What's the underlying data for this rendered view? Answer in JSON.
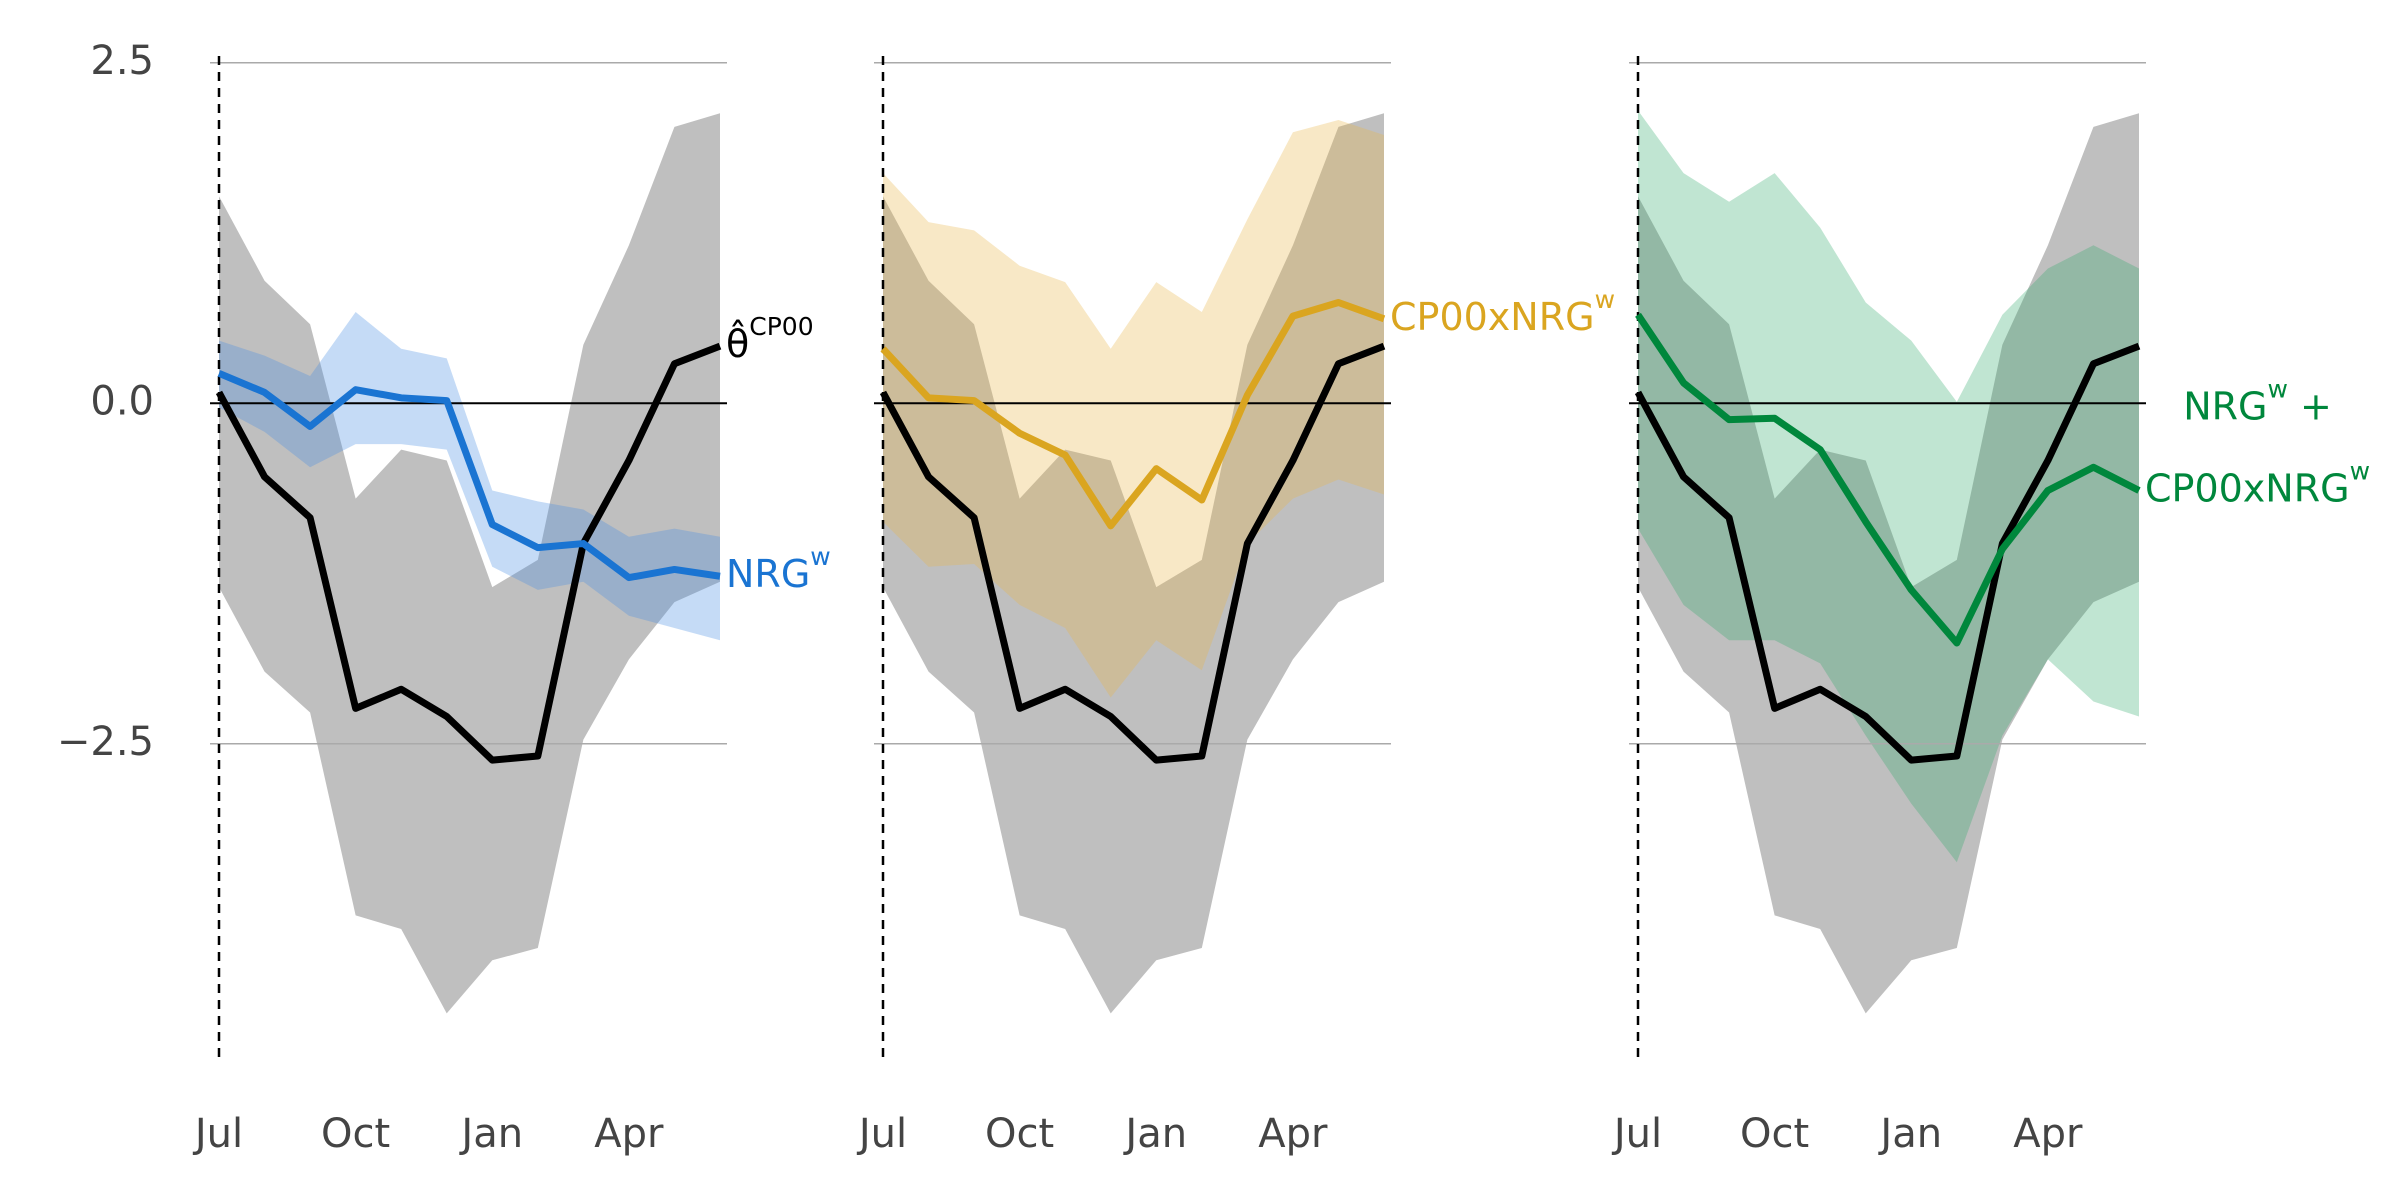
{
  "chart_data": [
    {
      "type": "line",
      "categories": [
        "Jul",
        null,
        null,
        "Oct",
        null,
        null,
        "Jan",
        null,
        null,
        "Apr",
        null,
        null
      ],
      "ylim": [
        -4.8,
        2.55
      ],
      "yticks": [
        2.5,
        {
          "value": 0,
          "label": "0.0"
        },
        {
          "value": -2.5,
          "label": "−2.5"
        }
      ],
      "yticklabels": true,
      "grid": true,
      "series": [
        {
          "label": [
            [
              "θ̂",
              "CP00"
            ]
          ],
          "color": "#000000",
          "band_color": "#bfbfbf",
          "band_opacity": 1,
          "values": [
            0.08,
            -0.54,
            -0.84,
            -2.24,
            -2.1,
            -2.3,
            -2.62,
            -2.59,
            -1.03,
            -0.42,
            0.29,
            0.42
          ],
          "upper": [
            1.52,
            0.9,
            0.58,
            -0.7,
            -0.34,
            -0.42,
            -1.35,
            -1.15,
            0.43,
            1.16,
            2.03,
            2.13
          ],
          "lower": [
            -1.35,
            -1.97,
            -2.27,
            -3.76,
            -3.86,
            -4.48,
            -4.09,
            -4.0,
            -2.47,
            -1.88,
            -1.46,
            -1.31
          ]
        },
        {
          "label": [
            [
              "NRG",
              "w"
            ]
          ],
          "color": "#1a74d2",
          "band_color": "#4a90e2",
          "band_opacity": 0.32,
          "values": [
            0.22,
            0.08,
            -0.17,
            0.1,
            0.04,
            0.02,
            -0.89,
            -1.06,
            -1.03,
            -1.28,
            -1.22,
            -1.27
          ],
          "upper": [
            0.46,
            0.35,
            0.2,
            0.67,
            0.4,
            0.33,
            -0.64,
            -0.72,
            -0.78,
            -0.98,
            -0.92,
            -0.98
          ],
          "lower": [
            -0.03,
            -0.21,
            -0.47,
            -0.3,
            -0.3,
            -0.34,
            -1.2,
            -1.37,
            -1.31,
            -1.56,
            -1.65,
            -1.74
          ]
        }
      ]
    },
    {
      "type": "line",
      "categories": [
        "Jul",
        null,
        null,
        "Oct",
        null,
        null,
        "Jan",
        null,
        null,
        "Apr",
        null,
        null
      ],
      "ylim": [
        -4.8,
        2.55
      ],
      "yticks": [
        2.5,
        0,
        -2.5
      ],
      "yticklabels": false,
      "grid": true,
      "series": [
        {
          "color": "#000000",
          "band_color": "#bfbfbf",
          "band_opacity": 1,
          "values": [
            0.08,
            -0.54,
            -0.84,
            -2.24,
            -2.1,
            -2.3,
            -2.62,
            -2.59,
            -1.03,
            -0.42,
            0.29,
            0.42
          ],
          "upper": [
            1.52,
            0.9,
            0.58,
            -0.7,
            -0.34,
            -0.42,
            -1.35,
            -1.15,
            0.43,
            1.16,
            2.03,
            2.13
          ],
          "lower": [
            -1.35,
            -1.97,
            -2.27,
            -3.76,
            -3.86,
            -4.48,
            -4.09,
            -4.0,
            -2.47,
            -1.88,
            -1.46,
            -1.31
          ]
        },
        {
          "label": [
            [
              "CP00xNRG",
              "w"
            ]
          ],
          "color": "#daa520",
          "band_color": "#e8b84f",
          "band_opacity": 0.32,
          "values": [
            0.4,
            0.04,
            0.02,
            -0.22,
            -0.38,
            -0.9,
            -0.48,
            -0.71,
            0.06,
            0.64,
            0.74,
            0.62
          ],
          "upper": [
            1.69,
            1.33,
            1.27,
            1.01,
            0.89,
            0.4,
            0.89,
            0.67,
            1.35,
            1.99,
            2.08,
            1.97
          ],
          "lower": [
            -0.87,
            -1.2,
            -1.18,
            -1.48,
            -1.65,
            -2.16,
            -1.74,
            -1.96,
            -1.03,
            -0.7,
            -0.56,
            -0.67
          ]
        }
      ]
    },
    {
      "type": "line",
      "categories": [
        "Jul",
        null,
        null,
        "Oct",
        null,
        null,
        "Jan",
        null,
        null,
        "Apr",
        null,
        null
      ],
      "ylim": [
        -4.8,
        2.55
      ],
      "yticks": [
        2.5,
        0,
        -2.5
      ],
      "yticklabels": false,
      "grid": true,
      "series": [
        {
          "color": "#000000",
          "band_color": "#bfbfbf",
          "band_opacity": 1,
          "values": [
            0.08,
            -0.54,
            -0.84,
            -2.24,
            -2.1,
            -2.3,
            -2.62,
            -2.59,
            -1.03,
            -0.42,
            0.29,
            0.42
          ],
          "upper": [
            1.52,
            0.9,
            0.58,
            -0.7,
            -0.34,
            -0.42,
            -1.35,
            -1.15,
            0.43,
            1.16,
            2.03,
            2.13
          ],
          "lower": [
            -1.35,
            -1.97,
            -2.27,
            -3.76,
            -3.86,
            -4.48,
            -4.09,
            -4.0,
            -2.47,
            -1.88,
            -1.46,
            -1.31
          ]
        },
        {
          "label": [
            [
              "NRG",
              "w",
              " +"
            ],
            [
              "CP00xNRG",
              "w"
            ]
          ],
          "color": "#00873c",
          "band_color": "#2ea86a",
          "band_opacity": 0.3,
          "values": [
            0.65,
            0.15,
            -0.12,
            -0.11,
            -0.34,
            -0.87,
            -1.37,
            -1.76,
            -1.07,
            -0.64,
            -0.47,
            -0.64
          ],
          "upper": [
            2.15,
            1.69,
            1.48,
            1.69,
            1.29,
            0.74,
            0.46,
            0.01,
            0.65,
            0.99,
            1.16,
            0.99
          ],
          "lower": [
            -0.92,
            -1.48,
            -1.74,
            -1.74,
            -1.91,
            -2.44,
            -2.94,
            -3.37,
            -2.44,
            -1.88,
            -2.19,
            -2.3
          ]
        }
      ]
    }
  ]
}
